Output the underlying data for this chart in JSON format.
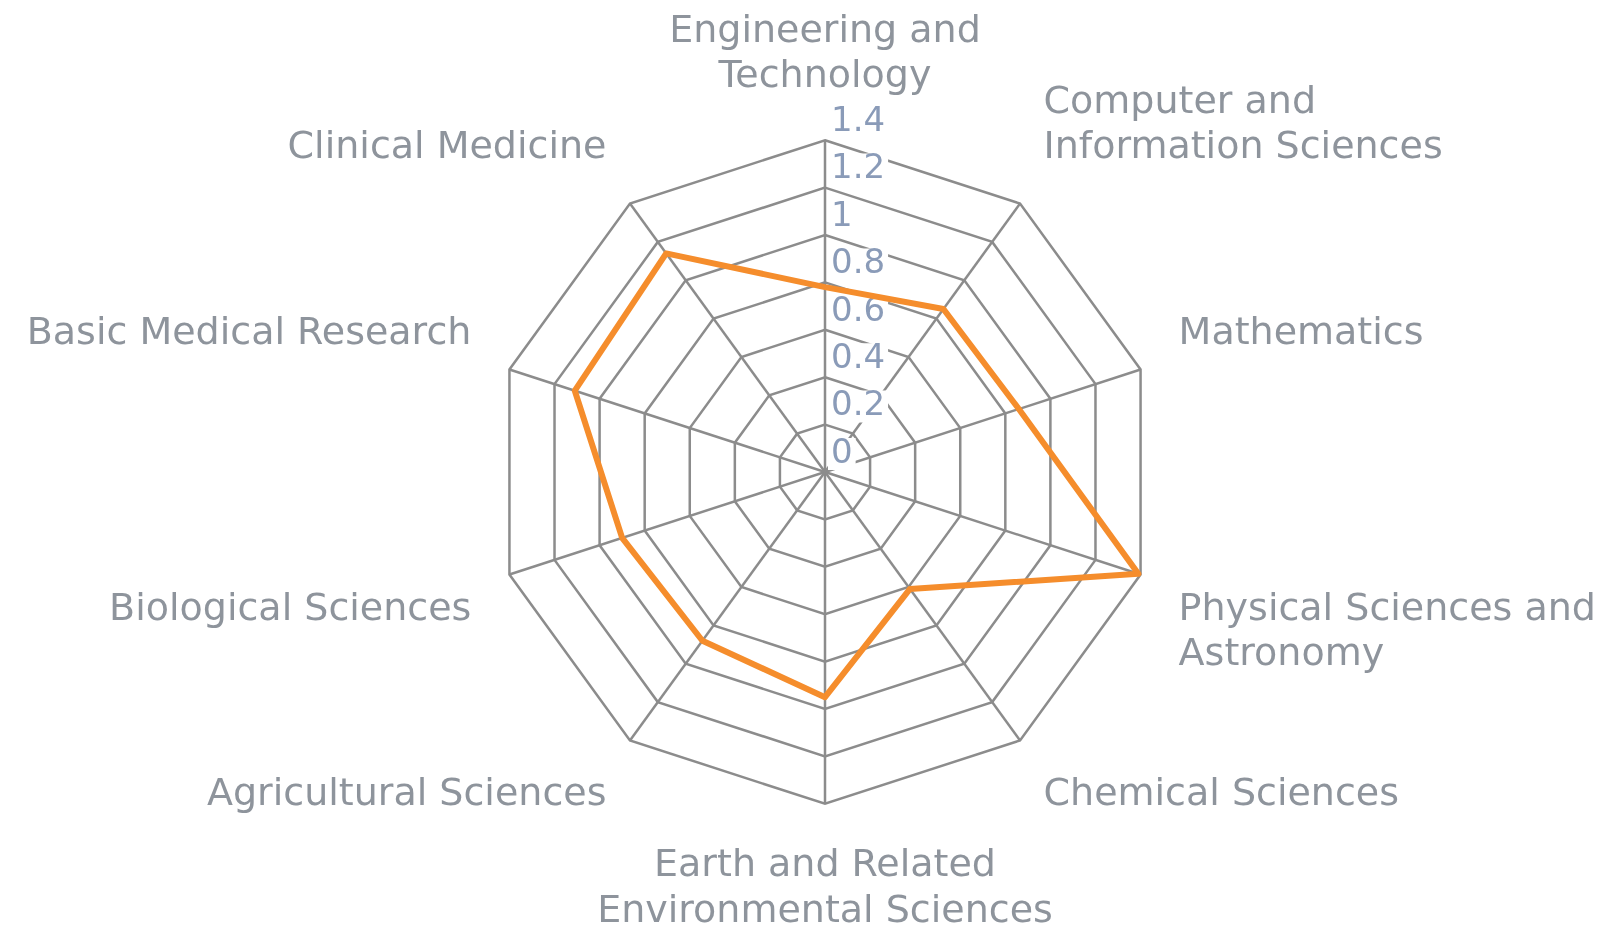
{
  "chart_data": {
    "type": "radar",
    "categories": [
      "Engineering and Technology",
      "Computer and Information Sciences",
      "Mathematics",
      "Physical Sciences and Astronomy",
      "Chemical Sciences",
      "Earth and Related Environmental Sciences",
      "Agricultural Sciences",
      "Biological Sciences",
      "Basic Medical Research",
      "Clinical Medicine"
    ],
    "series": [
      {
        "color": "#f58d2c",
        "values": [
          0.78,
          0.85,
          0.86,
          1.39,
          0.61,
          0.95,
          0.88,
          0.9,
          1.11,
          1.14
        ]
      }
    ],
    "ylim": [
      0,
      1.4
    ],
    "yticks": [
      0,
      0.2,
      0.4,
      0.6,
      0.8,
      1,
      1.2,
      1.4
    ],
    "grid": true,
    "legend": false,
    "marker": "none",
    "line_style": "solid"
  }
}
